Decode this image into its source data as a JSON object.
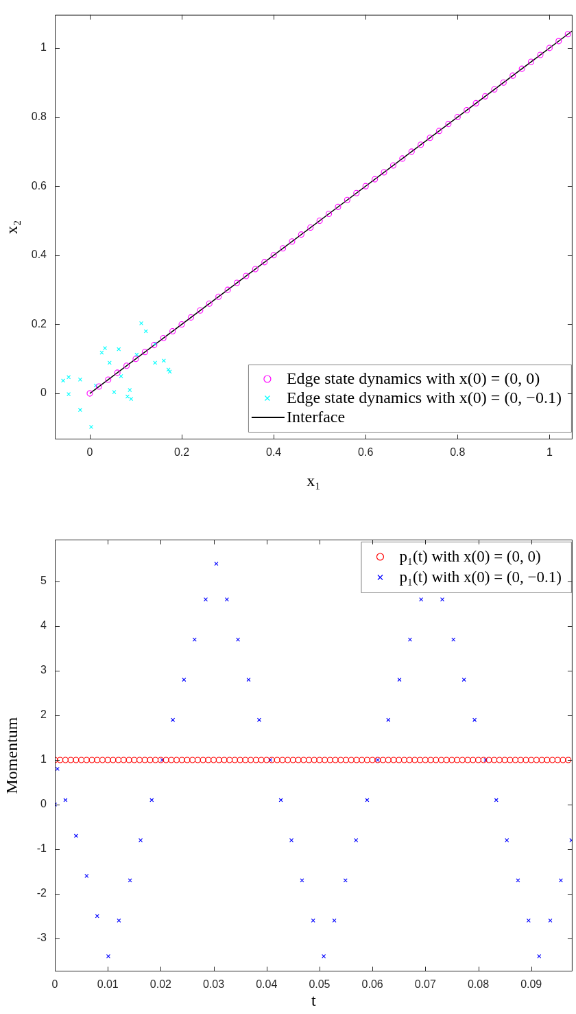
{
  "chart_data": [
    {
      "type": "scatter",
      "xlabel": "x₁",
      "ylabel": "x₂",
      "xlim": [
        -0.076,
        1.05
      ],
      "ylim": [
        -0.133,
        1.096
      ],
      "xticks": [
        0,
        0.2,
        0.4,
        0.6,
        0.8,
        1
      ],
      "yticks": [
        0,
        0.2,
        0.4,
        0.6,
        0.8,
        1
      ],
      "legend": "bottom right",
      "series": [
        {
          "name": "Edge state dynamics with x(0) = (0, 0)",
          "color": "#ff00ff",
          "marker": "circle",
          "x": [
            0,
            0.02,
            0.04,
            0.06,
            0.08,
            0.1,
            0.12,
            0.14,
            0.16,
            0.18,
            0.2,
            0.22,
            0.24,
            0.26,
            0.28,
            0.3,
            0.32,
            0.34,
            0.36,
            0.38,
            0.4,
            0.42,
            0.44,
            0.46,
            0.48,
            0.5,
            0.52,
            0.54,
            0.56,
            0.58,
            0.6,
            0.62,
            0.64,
            0.66,
            0.68,
            0.7,
            0.72,
            0.74,
            0.76,
            0.78,
            0.8,
            0.82,
            0.84,
            0.86,
            0.88,
            0.9,
            0.92,
            0.94,
            0.96,
            0.98,
            1,
            1.02,
            1.04
          ],
          "values": [
            0,
            0.02,
            0.04,
            0.06,
            0.08,
            0.1,
            0.12,
            0.14,
            0.16,
            0.18,
            0.2,
            0.22,
            0.24,
            0.26,
            0.28,
            0.3,
            0.32,
            0.34,
            0.36,
            0.38,
            0.4,
            0.42,
            0.44,
            0.46,
            0.48,
            0.5,
            0.52,
            0.54,
            0.56,
            0.58,
            0.6,
            0.62,
            0.64,
            0.66,
            0.68,
            0.7,
            0.72,
            0.74,
            0.76,
            0.78,
            0.8,
            0.82,
            0.84,
            0.86,
            0.88,
            0.9,
            0.92,
            0.94,
            0.96,
            0.98,
            1,
            1.02,
            1.04
          ]
        },
        {
          "name": "Edge state dynamics with x(0) = (0, −0.1)",
          "color": "#00ffff",
          "marker": "cross",
          "x": [
            0.003,
            -0.021,
            -0.046,
            -0.058,
            -0.046,
            -0.021,
            0.013,
            0.053,
            0.082,
            0.09,
            0.087,
            0.068,
            0.043,
            0.026,
            0.033,
            0.063,
            0.102,
            0.142,
            0.171,
            0.174,
            0.161,
            0.142,
            0.122,
            0.112
          ],
          "values": [
            -0.097,
            -0.048,
            -0.002,
            0.037,
            0.047,
            0.04,
            0.023,
            0.004,
            -0.009,
            -0.016,
            0.01,
            0.05,
            0.089,
            0.118,
            0.131,
            0.128,
            0.112,
            0.089,
            0.069,
            0.063,
            0.095,
            0.144,
            0.18,
            0.203
          ]
        },
        {
          "name": "Interface",
          "type": "line",
          "color": "#000000",
          "marker": "none",
          "x": [
            0,
            1.05
          ],
          "values": [
            0,
            1.05
          ]
        }
      ]
    },
    {
      "type": "scatter",
      "xlabel": "t",
      "ylabel": "Momentum",
      "xlim": [
        0,
        0.0978
      ],
      "ylim": [
        -3.74,
        5.94
      ],
      "xticks": [
        0,
        0.01,
        0.02,
        0.03,
        0.04,
        0.05,
        0.06,
        0.07,
        0.08,
        0.09
      ],
      "yticks": [
        -3,
        -2,
        -1,
        0,
        1,
        2,
        3,
        4,
        5
      ],
      "legend": "top right",
      "series": [
        {
          "name": "p₁(t) with x(0) = (0, 0)",
          "color": "#ff0000",
          "marker": "circle",
          "x": [
            0,
            0.001,
            0.002,
            0.003,
            0.004,
            0.005,
            0.006,
            0.007,
            0.008,
            0.009,
            0.01,
            0.011,
            0.012,
            0.013,
            0.014,
            0.015,
            0.016,
            0.017,
            0.018,
            0.019,
            0.02,
            0.021,
            0.022,
            0.023,
            0.024,
            0.025,
            0.026,
            0.027,
            0.028,
            0.029,
            0.03,
            0.031,
            0.032,
            0.033,
            0.034,
            0.035,
            0.036,
            0.037,
            0.038,
            0.039,
            0.04,
            0.041,
            0.042,
            0.043,
            0.044,
            0.045,
            0.046,
            0.047,
            0.048,
            0.049,
            0.05,
            0.051,
            0.052,
            0.053,
            0.054,
            0.055,
            0.056,
            0.057,
            0.058,
            0.059,
            0.06,
            0.061,
            0.062,
            0.063,
            0.064,
            0.065,
            0.066,
            0.067,
            0.068,
            0.069,
            0.07,
            0.071,
            0.072,
            0.073,
            0.074,
            0.075,
            0.076,
            0.077,
            0.078,
            0.079,
            0.08,
            0.081,
            0.082,
            0.083,
            0.084,
            0.085,
            0.086,
            0.087,
            0.088,
            0.089,
            0.09,
            0.091,
            0.092,
            0.093,
            0.094,
            0.095,
            0.096,
            0.097
          ],
          "values": [
            1,
            1,
            1,
            1,
            1,
            1,
            1,
            1,
            1,
            1,
            1,
            1,
            1,
            1,
            1,
            1,
            1,
            1,
            1,
            1,
            1,
            1,
            1,
            1,
            1,
            1,
            1,
            1,
            1,
            1,
            1,
            1,
            1,
            1,
            1,
            1,
            1,
            1,
            1,
            1,
            1,
            1,
            1,
            1,
            1,
            1,
            1,
            1,
            1,
            1,
            1,
            1,
            1,
            1,
            1,
            1,
            1,
            1,
            1,
            1,
            1,
            1,
            1,
            1,
            1,
            1,
            1,
            1,
            1,
            1,
            1,
            1,
            1,
            1,
            1,
            1,
            1,
            1,
            1,
            1,
            1,
            1,
            1,
            1,
            1,
            1,
            1,
            1,
            1,
            1,
            1,
            1,
            1,
            1,
            1,
            1,
            1,
            1
          ]
        },
        {
          "name": "p₁(t) with x(0) = (0, −0.1)",
          "color": "#0000ff",
          "marker": "cross",
          "x": [
            0,
            0.0005,
            0.002,
            0.004,
            0.006,
            0.008,
            0.0101,
            0.0121,
            0.0142,
            0.0162,
            0.0183,
            0.0203,
            0.0223,
            0.0244,
            0.0264,
            0.0285,
            0.0305,
            0.0325,
            0.0346,
            0.0366,
            0.0386,
            0.0407,
            0.0427,
            0.0447,
            0.0467,
            0.0488,
            0.0508,
            0.0528,
            0.0549,
            0.0569,
            0.059,
            0.061,
            0.063,
            0.0651,
            0.0671,
            0.0692,
            0.0712,
            0.0732,
            0.0753,
            0.0773,
            0.0793,
            0.0814,
            0.0834,
            0.0854,
            0.0875,
            0.0895,
            0.0915,
            0.0936,
            0.0956,
            0.0976
          ],
          "values": [
            0,
            0.8,
            0.1,
            -0.7,
            -1.6,
            -2.5,
            -3.4,
            -2.6,
            -1.7,
            -0.8,
            0.1,
            1,
            1.9,
            2.8,
            3.7,
            4.6,
            5.4,
            4.6,
            3.7,
            2.8,
            1.9,
            1,
            0.1,
            -0.8,
            -1.7,
            -2.6,
            -3.4,
            -2.6,
            -1.7,
            -0.8,
            0.1,
            1,
            1.9,
            2.8,
            3.7,
            4.6,
            null,
            4.6,
            3.7,
            2.8,
            1.9,
            1,
            0.1,
            -0.8,
            -1.7,
            -2.6,
            -3.4,
            -2.6,
            -1.7,
            -0.8
          ]
        }
      ]
    }
  ]
}
